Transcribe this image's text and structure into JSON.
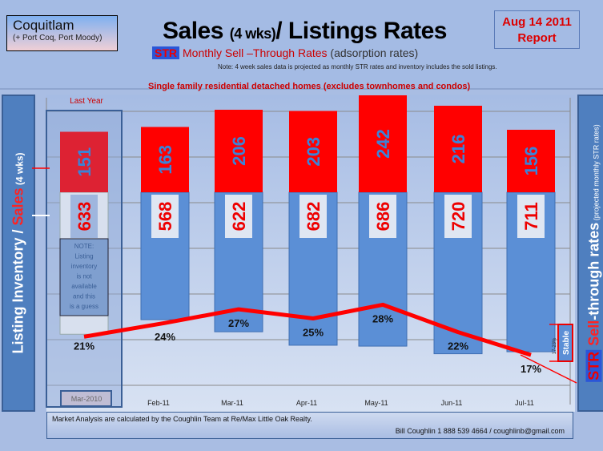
{
  "header": {
    "city": "Coquitlam",
    "city_sub": "(+ Port Coq, Port Moody)",
    "title_a": "Sales ",
    "title_b": "(4 wks)",
    "title_c": "/ Listings Rates",
    "report_date": "Aug 14 2011",
    "report_word": "Report",
    "str_badge": "STR",
    "subtitle": "Monthly Sell –Through Rates",
    "subtitle_paren": " (adsorption rates)",
    "note": "Note: 4 week sales data is projected  as monthly  STR rates and inventory includes  the sold listings.",
    "segment": "Single family residential detached homes ",
    "segment_paren": "(excludes townhomes and condos)"
  },
  "left_axis": {
    "a": "Listing Inventory / ",
    "b": "Sales",
    "c": " (4 wks)"
  },
  "right_axis": {
    "a": "STR",
    "b": " Sell",
    "c": "-through rates",
    "d": "  (projected monthly STR rates)"
  },
  "chart_data": {
    "type": "bar",
    "title": "Sales (4 wks)/ Listings Rates",
    "categories": [
      "Mar-2010",
      "Feb-11",
      "Mar-11",
      "Apr-11",
      "May-11",
      "Jun-11",
      "Jul-11"
    ],
    "series": [
      {
        "name": "Sales (4 wks)",
        "values": [
          151,
          163,
          206,
          203,
          242,
          216,
          156
        ],
        "color": "#ff0000"
      },
      {
        "name": "Listing Inventory",
        "values": [
          633,
          568,
          622,
          682,
          686,
          720,
          711
        ],
        "color": "#5b8fd6"
      },
      {
        "name": "STR",
        "values": [
          21,
          24,
          27,
          25,
          28,
          22,
          17
        ],
        "labels": [
          "21%",
          "24%",
          "27%",
          "25%",
          "28%",
          "22%",
          "17%"
        ],
        "color": "#ff0000"
      }
    ],
    "annotations": {
      "last_year": "Last Year",
      "note": [
        "NOTE:",
        "Listing",
        "inventory",
        "is  not",
        "available",
        "and this",
        "is a guess"
      ],
      "stable": "Stable",
      "range": "17-23%"
    }
  },
  "footer": {
    "line1": "Market Analysis are calculated by  the  Coughlin Team at Re/Max Little Oak Realty.",
    "line2": "Bill Coughlin 1 888 539 4664 / coughlinb@gmail.com"
  }
}
